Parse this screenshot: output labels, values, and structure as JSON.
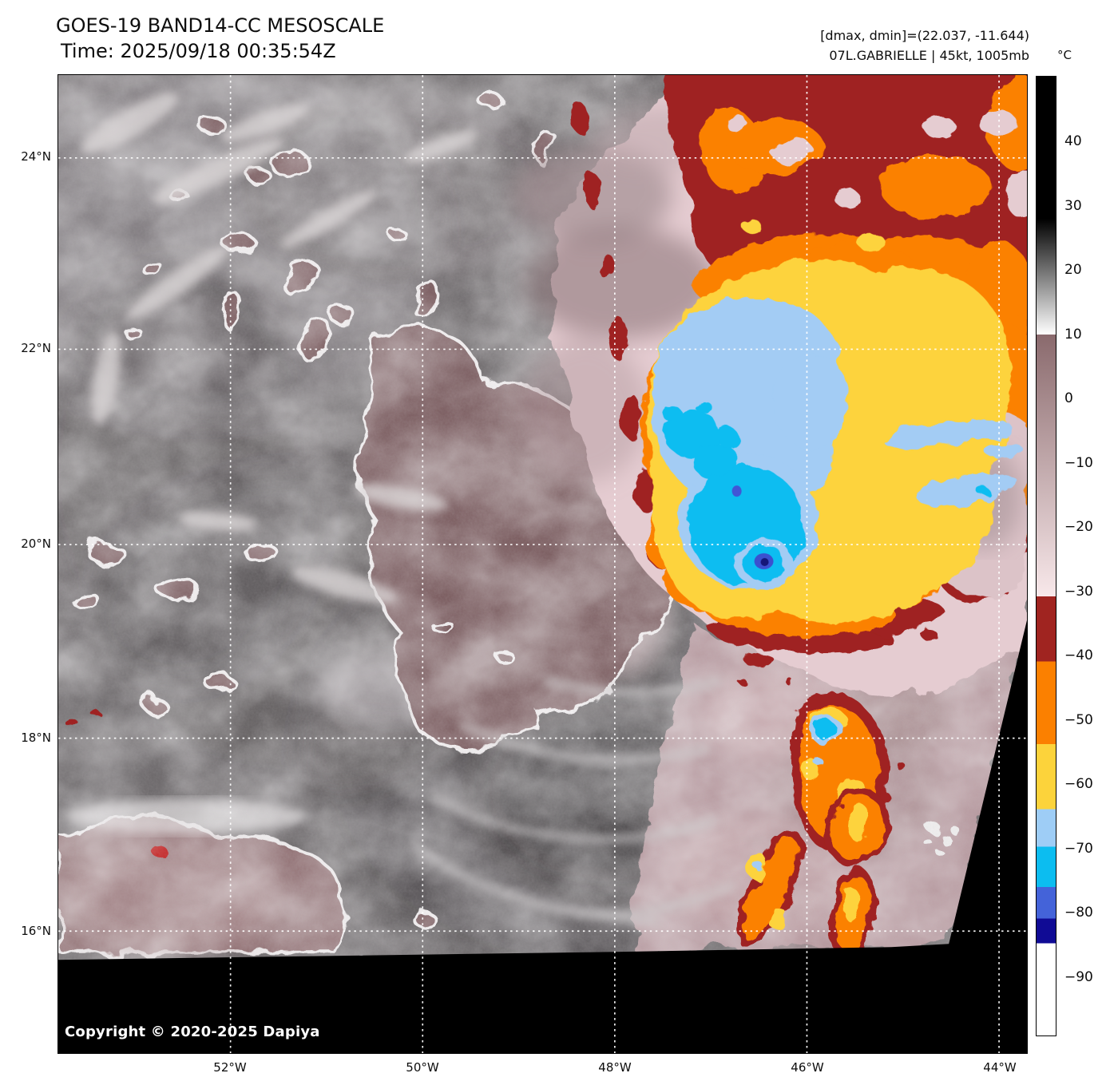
{
  "header": {
    "title": "GOES-19 BAND14-CC MESOSCALE",
    "time": "Time: 2025/09/18 00:35:54Z",
    "dmax_dmin": "[dmax, dmin]=(22.037, -11.644)",
    "storm_info": "07L.GABRIELLE | 45kt, 1005mb"
  },
  "colorbar": {
    "unit_label": "°C",
    "tick_labels": [
      "40",
      "30",
      "20",
      "10",
      "0",
      "−10",
      "−20",
      "−30",
      "−40",
      "−50",
      "−60",
      "−70",
      "−80",
      "−90"
    ],
    "gradient_stops": [
      [
        0,
        "#000000"
      ],
      [
        14.8,
        "#000000"
      ],
      [
        26.9,
        "#ffffff"
      ],
      [
        26.9,
        "#8a6a6d"
      ],
      [
        54.2,
        "#f8e8ea"
      ],
      [
        54.2,
        "#a02420"
      ],
      [
        61.0,
        "#a02420"
      ],
      [
        61.0,
        "#fb8000"
      ],
      [
        69.6,
        "#fb8000"
      ],
      [
        69.6,
        "#fcd33b"
      ],
      [
        76.4,
        "#fcd33b"
      ],
      [
        76.4,
        "#9ecdf6"
      ],
      [
        80.3,
        "#9ecdf6"
      ],
      [
        80.3,
        "#0cbdf0"
      ],
      [
        84.5,
        "#0cbdf0"
      ],
      [
        84.5,
        "#4463d9"
      ],
      [
        87.8,
        "#4463d9"
      ],
      [
        87.8,
        "#100b95"
      ],
      [
        90.4,
        "#100b95"
      ],
      [
        90.4,
        "#ffffff"
      ],
      [
        100,
        "#ffffff"
      ]
    ],
    "palette": {
      "warm_gray_range": [
        "#000000",
        "#ffffff"
      ],
      "midlevel_mauve_range": [
        "#8a6a6d",
        "#f8e8ea"
      ],
      "cold_steps": [
        "#a02420",
        "#fb8000",
        "#fcd33b",
        "#9ecdf6",
        "#0cbdf0",
        "#4463d9",
        "#100b95",
        "#ffffff"
      ]
    }
  },
  "map": {
    "lat_labels": [
      "24°N",
      "22°N",
      "20°N",
      "18°N",
      "16°N"
    ],
    "lon_labels": [
      "52°W",
      "50°W",
      "48°W",
      "46°W",
      "44°W"
    ],
    "copyright": "Copyright © 2020-2025 Dapiya"
  }
}
